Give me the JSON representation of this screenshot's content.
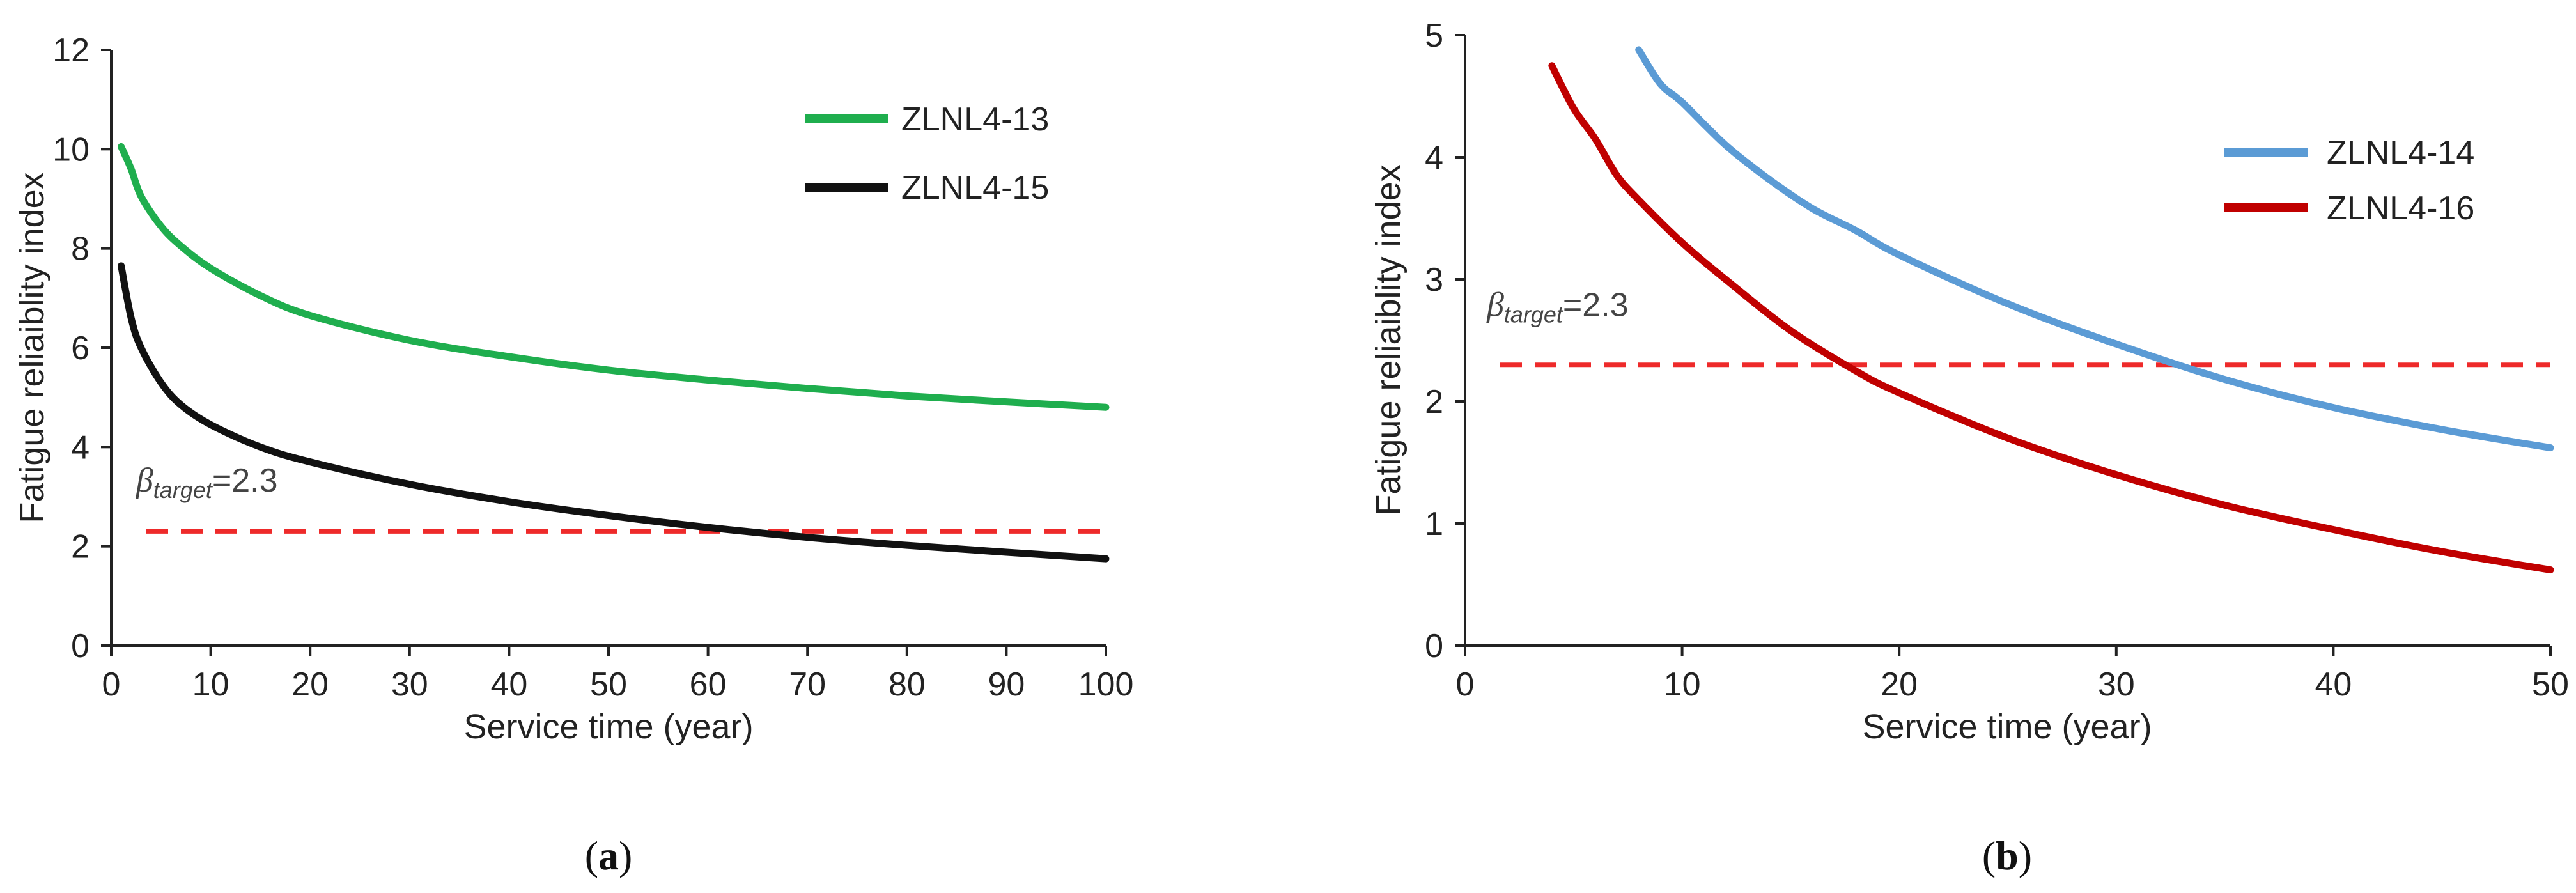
{
  "chart_data": [
    {
      "id": "a",
      "type": "line",
      "panel_label": "a",
      "xlabel": "Service time (year)",
      "ylabel": "Fatigue reliaiblity  index",
      "xlim": [
        0,
        100
      ],
      "ylim": [
        0,
        12
      ],
      "xticks": [
        0,
        10,
        20,
        30,
        40,
        50,
        60,
        70,
        80,
        90,
        100
      ],
      "yticks": [
        0,
        2,
        4,
        6,
        8,
        10,
        12
      ],
      "legend_position": "top-right",
      "threshold": {
        "value": 2.3,
        "color": "#ee2a2a",
        "symbol": "β",
        "subscript": "target",
        "label_value": "=2.3",
        "label_at": [
          2.5,
          3.1
        ]
      },
      "series": [
        {
          "name": "ZLNL4-13",
          "color": "#1fae4e",
          "x": [
            1,
            2,
            3,
            5,
            7,
            10,
            15,
            20,
            30,
            40,
            50,
            60,
            70,
            80,
            90,
            100
          ],
          "y": [
            10.05,
            9.6,
            9.05,
            8.45,
            8.05,
            7.6,
            7.05,
            6.65,
            6.15,
            5.82,
            5.55,
            5.35,
            5.18,
            5.03,
            4.91,
            4.8
          ]
        },
        {
          "name": "ZLNL4-15",
          "color": "#111111",
          "x": [
            1,
            2,
            3,
            5,
            7,
            10,
            15,
            20,
            30,
            40,
            50,
            60,
            70,
            80,
            90,
            100
          ],
          "y": [
            7.65,
            6.6,
            6.0,
            5.3,
            4.85,
            4.45,
            4.0,
            3.7,
            3.25,
            2.9,
            2.62,
            2.38,
            2.18,
            2.02,
            1.88,
            1.75
          ]
        }
      ]
    },
    {
      "id": "b",
      "type": "line",
      "panel_label": "b",
      "xlabel": "Service time (year)",
      "ylabel": "Fatigue reliaiblity  index",
      "xlim": [
        0,
        50
      ],
      "ylim": [
        0,
        5
      ],
      "xticks": [
        0,
        10,
        20,
        30,
        40,
        50
      ],
      "yticks": [
        0,
        1,
        2,
        3,
        4,
        5
      ],
      "legend_position": "top-right",
      "threshold": {
        "value": 2.3,
        "color": "#ee2a2a",
        "symbol": "β",
        "subscript": "target",
        "label_value": "=2.3",
        "label_at": [
          1.0,
          2.7
        ]
      },
      "series": [
        {
          "name": "ZLNL4-14",
          "color": "#5b9bd5",
          "x": [
            8,
            9,
            10,
            12,
            14,
            16,
            18,
            20,
            25,
            30,
            35,
            40,
            45,
            50
          ],
          "y": [
            4.88,
            4.6,
            4.45,
            4.1,
            3.82,
            3.58,
            3.4,
            3.2,
            2.8,
            2.47,
            2.18,
            1.95,
            1.77,
            1.62
          ]
        },
        {
          "name": "ZLNL4-16",
          "color": "#c00000",
          "x": [
            4,
            5,
            6,
            7,
            8,
            10,
            12,
            15,
            18,
            20,
            25,
            30,
            35,
            40,
            45,
            50
          ],
          "y": [
            4.75,
            4.4,
            4.15,
            3.85,
            3.65,
            3.3,
            3.0,
            2.58,
            2.25,
            2.07,
            1.7,
            1.4,
            1.15,
            0.95,
            0.77,
            0.62
          ]
        }
      ]
    }
  ]
}
